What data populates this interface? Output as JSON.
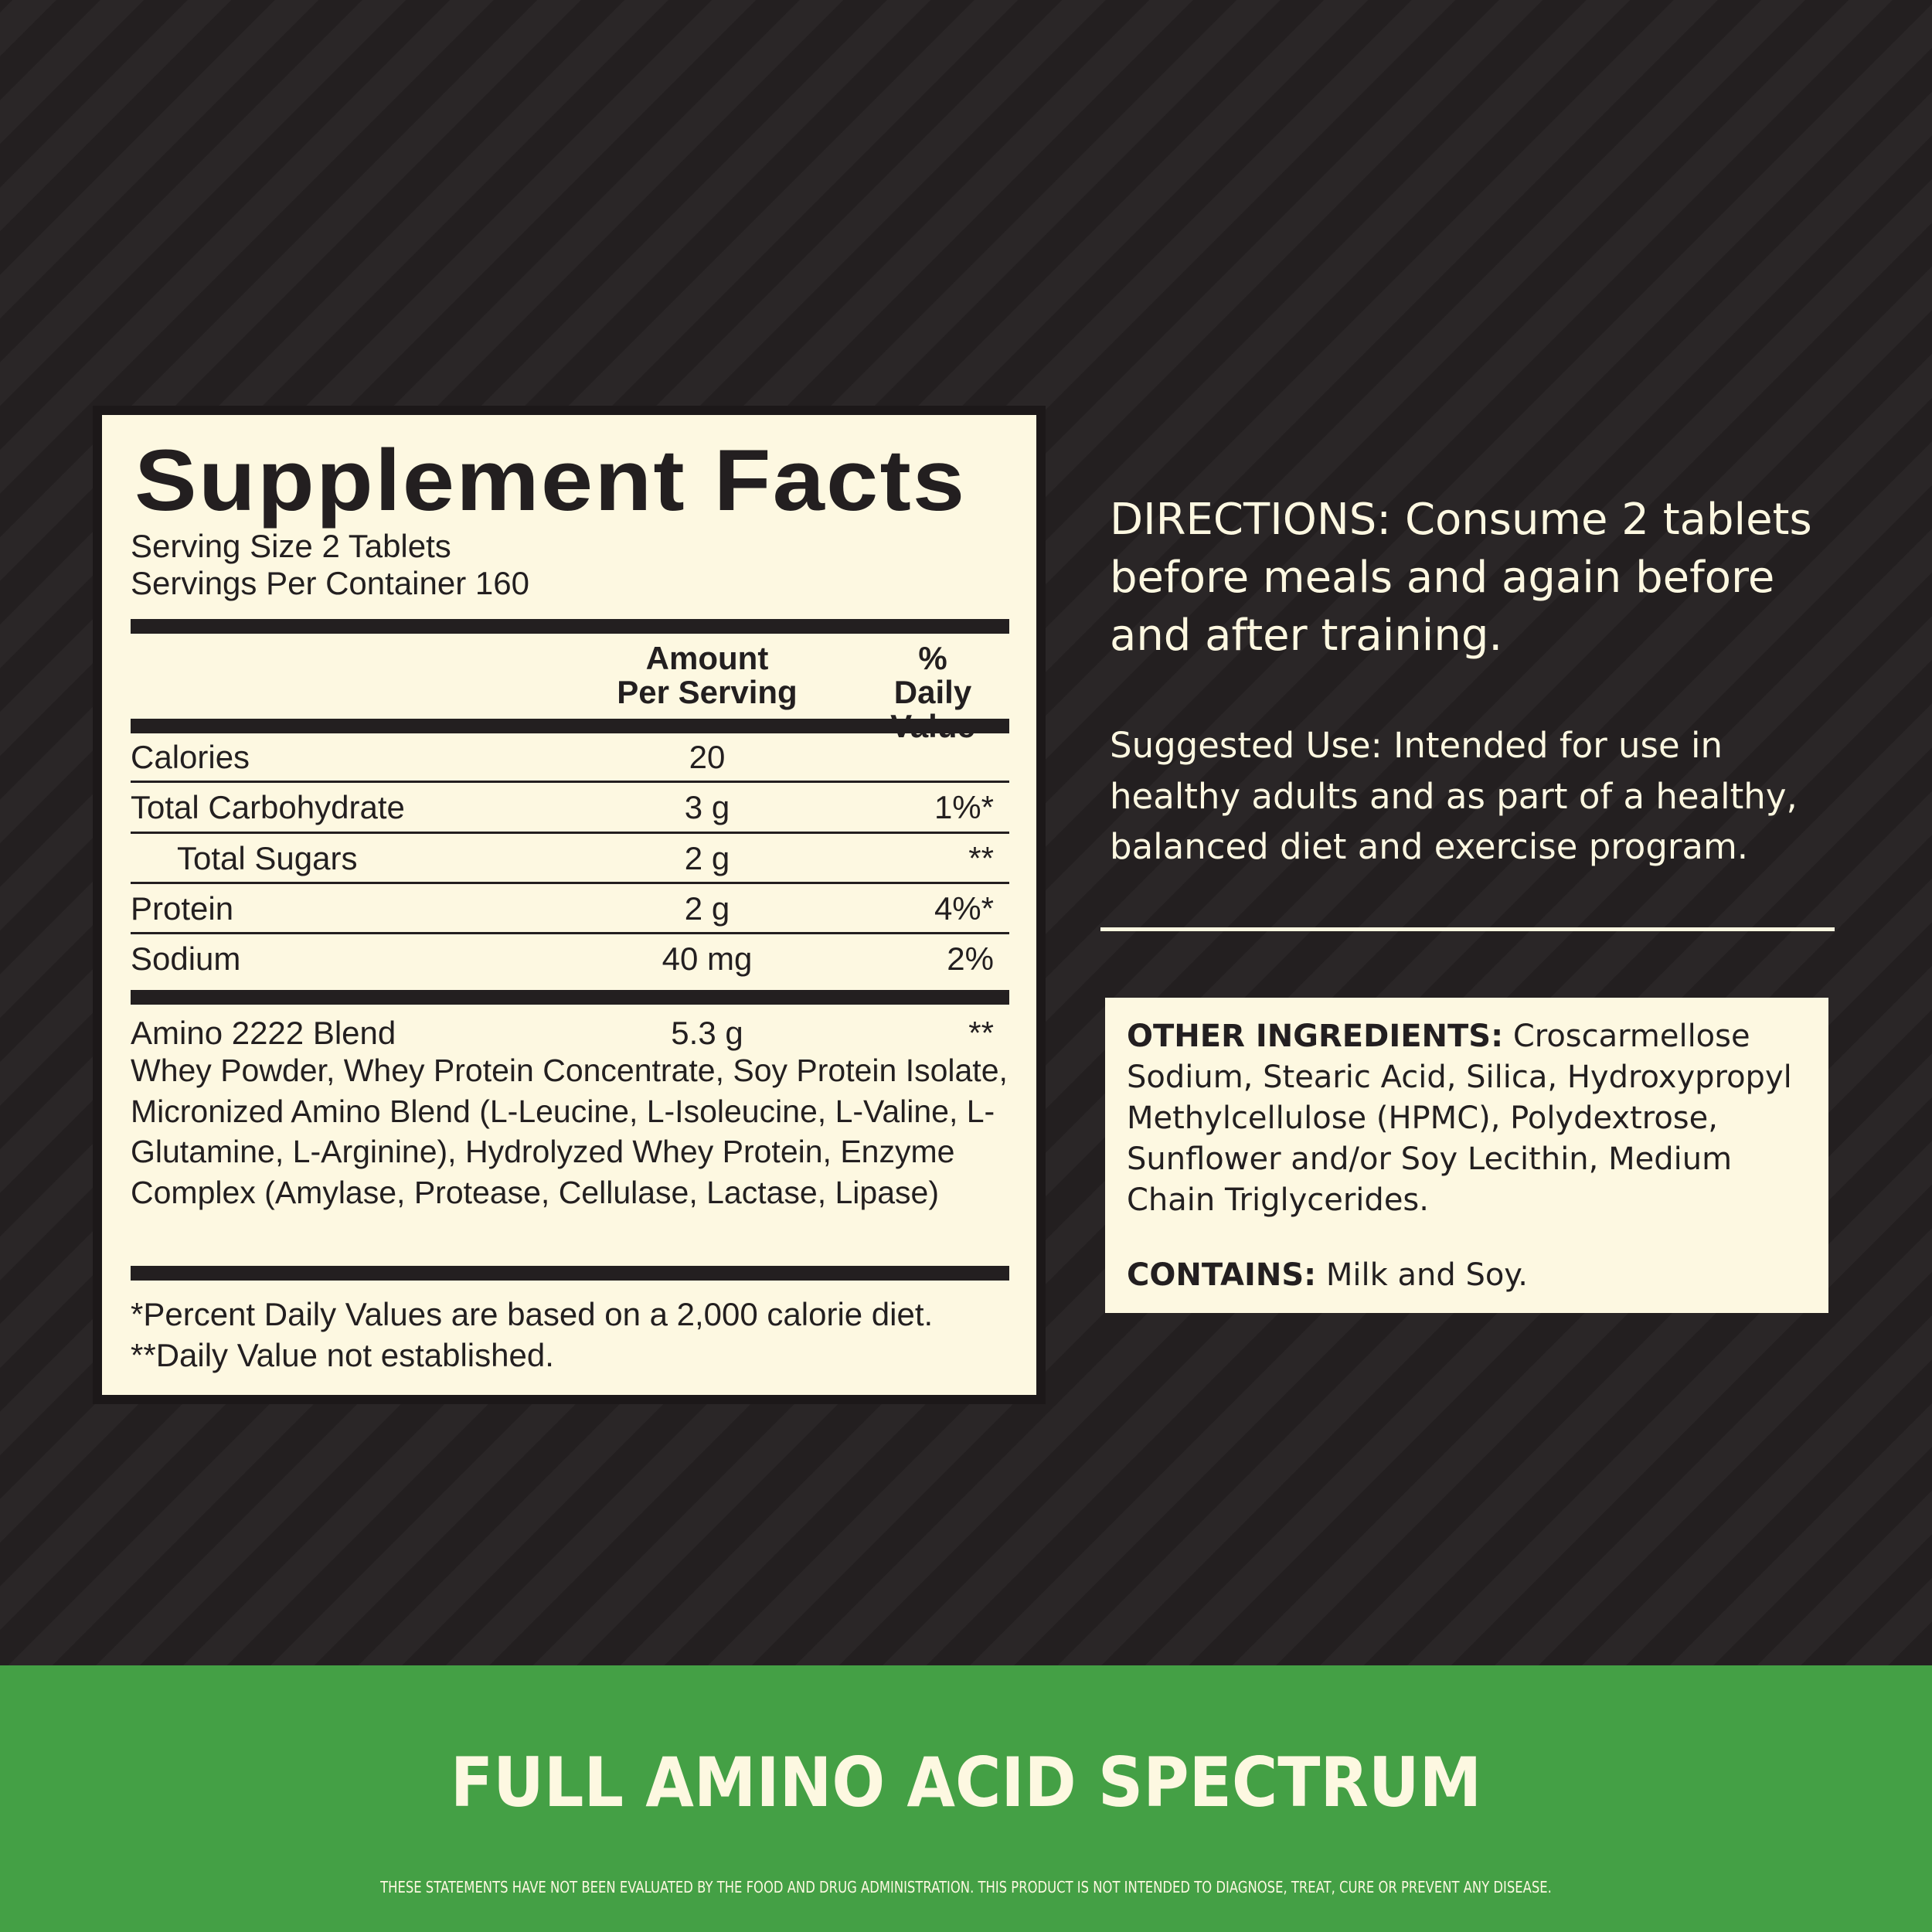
{
  "colors": {
    "background": "#231f20",
    "panel": "#fdf8e1",
    "green": "#44a045"
  },
  "facts": {
    "title": "Supplement Facts",
    "serving_size": "Serving Size 2 Tablets",
    "servings_per_container": "Servings Per Container 160",
    "header_amount_1": "Amount",
    "header_amount_2": "Per Serving",
    "header_dv_1": "% Daily",
    "header_dv_2": "Value",
    "rows": [
      {
        "name": "Calories",
        "amount": "20",
        "dv": ""
      },
      {
        "name": "Total Carbohydrate",
        "amount": "3 g",
        "dv": "1%*"
      },
      {
        "name": "Total Sugars",
        "amount": "2 g",
        "dv": "**"
      },
      {
        "name": "Protein",
        "amount": "2 g",
        "dv": "4%*"
      },
      {
        "name": "Sodium",
        "amount": "40 mg",
        "dv": "2%"
      }
    ],
    "blend": {
      "name": "Amino 2222 Blend",
      "amount": "5.3 g",
      "dv": "**",
      "ingredients": "Whey Powder, Whey Protein Concentrate, Soy Protein Isolate, Micronized Amino Blend (L-Leucine, L-Isoleucine, L-Valine, L-Glutamine, L-Arginine), Hydrolyzed Whey Protein, Enzyme Complex (Amylase, Protease, Cellulase, Lactase, Lipase)"
    },
    "footnote_1": "*Percent Daily Values are based on a 2,000 calorie diet.",
    "footnote_2": "**Daily Value not established."
  },
  "directions": {
    "line1": "DIRECTIONS: Consume 2 tablets",
    "line2": "before meals and again before",
    "line3": "and after training."
  },
  "suggested": {
    "line1": "Suggested Use: Intended for use in",
    "line2": "healthy adults and as part of a healthy,",
    "line3": "balanced diet and exercise program."
  },
  "other": {
    "label": "OTHER INGREDIENTS:",
    "text": " Croscarmellose Sodium, Stearic Acid, Silica, Hydroxypropyl Methylcellulose (HPMC), Polydextrose, Sunflower and/or Soy Lecithin, Medium Chain Triglycerides.",
    "contains_label": "CONTAINS:",
    "contains_text": " Milk and Soy."
  },
  "banner": {
    "title": "FULL AMINO ACID SPECTRUM",
    "disclaimer": "THESE STATEMENTS HAVE NOT BEEN EVALUATED BY THE FOOD AND DRUG ADMINISTRATION. THIS PRODUCT IS NOT INTENDED TO DIAGNOSE, TREAT, CURE OR PREVENT ANY DISEASE."
  }
}
